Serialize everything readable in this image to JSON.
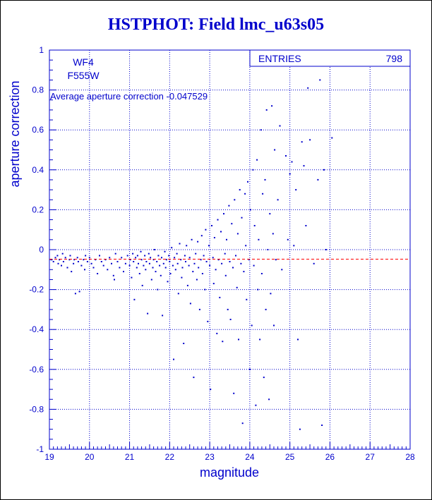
{
  "chart_data": {
    "type": "scatter",
    "title": "HSTPHOT: Field lmc_u63s05",
    "xlabel": "magnitude",
    "ylabel": "aperture correction",
    "xlim": [
      19,
      28
    ],
    "ylim": [
      -1,
      1
    ],
    "x_ticks": [
      19,
      20,
      21,
      22,
      23,
      24,
      25,
      26,
      27,
      28
    ],
    "y_ticks": [
      -1,
      -0.8,
      -0.6,
      -0.4,
      -0.2,
      0,
      0.2,
      0.4,
      0.6,
      0.8,
      1
    ],
    "grid": true,
    "chip": "WF4",
    "filter": "F555W",
    "annotation": "Average aperture correction -0.047529",
    "average": -0.047529,
    "stats_label": "ENTRIES",
    "stats_value": "798",
    "colors": {
      "points": "#0000cc",
      "axes": "#0000cc",
      "average_line": "#ff0000",
      "grid": "#0000cc"
    },
    "points": [
      [
        19.05,
        -0.05
      ],
      [
        19.1,
        -0.06
      ],
      [
        19.15,
        -0.04
      ],
      [
        19.2,
        -0.03
      ],
      [
        19.22,
        -0.07
      ],
      [
        19.25,
        -0.05
      ],
      [
        19.3,
        -0.08
      ],
      [
        19.33,
        -0.02
      ],
      [
        19.35,
        -0.06
      ],
      [
        19.4,
        -0.04
      ],
      [
        19.45,
        -0.09
      ],
      [
        19.5,
        -0.05
      ],
      [
        19.52,
        -0.03
      ],
      [
        19.55,
        -0.11
      ],
      [
        19.6,
        -0.07
      ],
      [
        19.62,
        -0.05
      ],
      [
        19.65,
        -0.22
      ],
      [
        19.7,
        -0.04
      ],
      [
        19.72,
        -0.06
      ],
      [
        19.75,
        -0.21
      ],
      [
        19.8,
        -0.08
      ],
      [
        19.85,
        -0.05
      ],
      [
        19.88,
        -0.1
      ],
      [
        19.9,
        -0.03
      ],
      [
        19.95,
        -0.06
      ],
      [
        20.0,
        -0.04
      ],
      [
        20.05,
        -0.07
      ],
      [
        20.1,
        -0.09
      ],
      [
        20.15,
        -0.05
      ],
      [
        20.2,
        -0.12
      ],
      [
        20.25,
        -0.03
      ],
      [
        20.3,
        -0.06
      ],
      [
        20.35,
        -0.08
      ],
      [
        20.4,
        -0.05
      ],
      [
        20.45,
        -0.1
      ],
      [
        20.5,
        -0.04
      ],
      [
        20.55,
        -0.07
      ],
      [
        20.6,
        -0.13
      ],
      [
        20.62,
        -0.15
      ],
      [
        20.65,
        -0.02
      ],
      [
        20.7,
        -0.06
      ],
      [
        20.75,
        -0.09
      ],
      [
        20.8,
        -0.04
      ],
      [
        20.85,
        -0.11
      ],
      [
        20.9,
        -0.07
      ],
      [
        20.95,
        -0.03
      ],
      [
        21.0,
        -0.08
      ],
      [
        21.02,
        -0.05
      ],
      [
        21.05,
        -0.14
      ],
      [
        21.08,
        -0.02
      ],
      [
        21.1,
        -0.06
      ],
      [
        21.12,
        -0.25
      ],
      [
        21.15,
        -0.04
      ],
      [
        21.18,
        -0.09
      ],
      [
        21.2,
        -0.03
      ],
      [
        21.22,
        -0.07
      ],
      [
        21.25,
        -0.12
      ],
      [
        21.28,
        -0.01
      ],
      [
        21.3,
        -0.05
      ],
      [
        21.32,
        -0.18
      ],
      [
        21.35,
        -0.08
      ],
      [
        21.38,
        -0.03
      ],
      [
        21.4,
        -0.1
      ],
      [
        21.42,
        -0.06
      ],
      [
        21.45,
        -0.32
      ],
      [
        21.48,
        -0.02
      ],
      [
        21.5,
        -0.07
      ],
      [
        21.52,
        -0.04
      ],
      [
        21.55,
        -0.15
      ],
      [
        21.58,
        -0.09
      ],
      [
        21.6,
        -0.05
      ],
      [
        21.62,
        0.0
      ],
      [
        21.65,
        -0.11
      ],
      [
        21.68,
        -0.06
      ],
      [
        21.7,
        -0.2
      ],
      [
        21.72,
        -0.03
      ],
      [
        21.75,
        -0.08
      ],
      [
        21.78,
        -0.13
      ],
      [
        21.8,
        -0.04
      ],
      [
        21.82,
        -0.33
      ],
      [
        21.85,
        -0.07
      ],
      [
        21.88,
        -0.01
      ],
      [
        21.9,
        -0.09
      ],
      [
        21.92,
        -0.05
      ],
      [
        21.95,
        -0.16
      ],
      [
        21.98,
        -0.03
      ],
      [
        22.0,
        -0.06
      ],
      [
        22.02,
        -0.12
      ],
      [
        22.05,
        0.01
      ],
      [
        22.08,
        -0.08
      ],
      [
        22.1,
        -0.55
      ],
      [
        22.12,
        -0.04
      ],
      [
        22.15,
        -0.1
      ],
      [
        22.18,
        -0.02
      ],
      [
        22.2,
        -0.07
      ],
      [
        22.22,
        -0.22
      ],
      [
        22.25,
        0.03
      ],
      [
        22.28,
        -0.05
      ],
      [
        22.3,
        -0.14
      ],
      [
        22.32,
        -0.09
      ],
      [
        22.35,
        -0.47
      ],
      [
        22.38,
        -0.03
      ],
      [
        22.4,
        -0.06
      ],
      [
        22.42,
        0.02
      ],
      [
        22.45,
        -0.18
      ],
      [
        22.48,
        -0.08
      ],
      [
        22.5,
        -0.04
      ],
      [
        22.52,
        -0.27
      ],
      [
        22.55,
        0.05
      ],
      [
        22.58,
        -0.11
      ],
      [
        22.6,
        -0.64
      ],
      [
        22.62,
        -0.07
      ],
      [
        22.65,
        -0.02
      ],
      [
        22.68,
        -0.15
      ],
      [
        22.7,
        0.04
      ],
      [
        22.72,
        -0.09
      ],
      [
        22.75,
        -0.3
      ],
      [
        22.78,
        -0.05
      ],
      [
        22.8,
        0.07
      ],
      [
        22.82,
        -0.12
      ],
      [
        22.85,
        -0.03
      ],
      [
        22.88,
        -0.2
      ],
      [
        22.9,
        0.1
      ],
      [
        22.92,
        -0.06
      ],
      [
        22.95,
        -0.36
      ],
      [
        22.98,
        0.02
      ],
      [
        23.0,
        -0.08
      ],
      [
        23.02,
        -0.7
      ],
      [
        23.05,
        0.12
      ],
      [
        23.08,
        -0.04
      ],
      [
        23.1,
        -0.17
      ],
      [
        23.12,
        0.06
      ],
      [
        23.15,
        -0.1
      ],
      [
        23.18,
        -0.42
      ],
      [
        23.2,
        0.15
      ],
      [
        23.22,
        -0.05
      ],
      [
        23.25,
        -0.24
      ],
      [
        23.28,
        0.09
      ],
      [
        23.3,
        -0.07
      ],
      [
        23.32,
        -0.46
      ],
      [
        23.35,
        0.18
      ],
      [
        23.38,
        -0.02
      ],
      [
        23.4,
        -0.13
      ],
      [
        23.42,
        0.05
      ],
      [
        23.45,
        -0.3
      ],
      [
        23.48,
        0.22
      ],
      [
        23.5,
        -0.06
      ],
      [
        23.52,
        -0.35
      ],
      [
        23.55,
        0.13
      ],
      [
        23.58,
        -0.09
      ],
      [
        23.6,
        -0.72
      ],
      [
        23.62,
        0.25
      ],
      [
        23.65,
        -0.03
      ],
      [
        23.68,
        -0.19
      ],
      [
        23.7,
        0.08
      ],
      [
        23.72,
        -0.45
      ],
      [
        23.75,
        0.3
      ],
      [
        23.78,
        -0.07
      ],
      [
        23.8,
        0.16
      ],
      [
        23.82,
        -0.87
      ],
      [
        23.85,
        -0.11
      ],
      [
        23.88,
        0.28
      ],
      [
        23.9,
        0.02
      ],
      [
        23.92,
        -0.25
      ],
      [
        23.95,
        0.34
      ],
      [
        23.98,
        -0.05
      ],
      [
        24.0,
        -0.6
      ],
      [
        24.02,
        0.2
      ],
      [
        24.05,
        -0.38
      ],
      [
        24.08,
        0.4
      ],
      [
        24.1,
        -0.08
      ],
      [
        24.12,
        0.12
      ],
      [
        24.15,
        -0.78
      ],
      [
        24.18,
        0.45
      ],
      [
        24.2,
        -0.2
      ],
      [
        24.22,
        0.05
      ],
      [
        24.25,
        -0.45
      ],
      [
        24.28,
        0.6
      ],
      [
        24.3,
        -0.12
      ],
      [
        24.32,
        0.28
      ],
      [
        24.35,
        -0.64
      ],
      [
        24.38,
        0.35
      ],
      [
        24.4,
        -0.3
      ],
      [
        24.42,
        0.7
      ],
      [
        24.45,
        0.0
      ],
      [
        24.48,
        -0.75
      ],
      [
        24.5,
        0.18
      ],
      [
        24.52,
        -0.22
      ],
      [
        24.55,
        0.72
      ],
      [
        24.58,
        0.08
      ],
      [
        24.6,
        -0.38
      ],
      [
        24.62,
        0.5
      ],
      [
        24.65,
        -0.05
      ],
      [
        24.7,
        0.25
      ],
      [
        24.75,
        0.62
      ],
      [
        24.8,
        -0.1
      ],
      [
        24.9,
        0.47
      ],
      [
        24.95,
        0.05
      ],
      [
        25.0,
        0.38
      ],
      [
        25.05,
        0.44
      ],
      [
        25.1,
        0.02
      ],
      [
        25.15,
        0.3
      ],
      [
        25.2,
        -0.45
      ],
      [
        25.25,
        -0.9
      ],
      [
        25.3,
        0.54
      ],
      [
        25.35,
        0.42
      ],
      [
        25.4,
        0.12
      ],
      [
        25.45,
        0.81
      ],
      [
        25.5,
        0.55
      ],
      [
        25.6,
        -0.07
      ],
      [
        25.7,
        0.35
      ],
      [
        25.75,
        0.85
      ],
      [
        25.8,
        -0.88
      ],
      [
        25.85,
        0.4
      ],
      [
        25.9,
        0.0
      ],
      [
        26.05,
        0.56
      ]
    ]
  }
}
